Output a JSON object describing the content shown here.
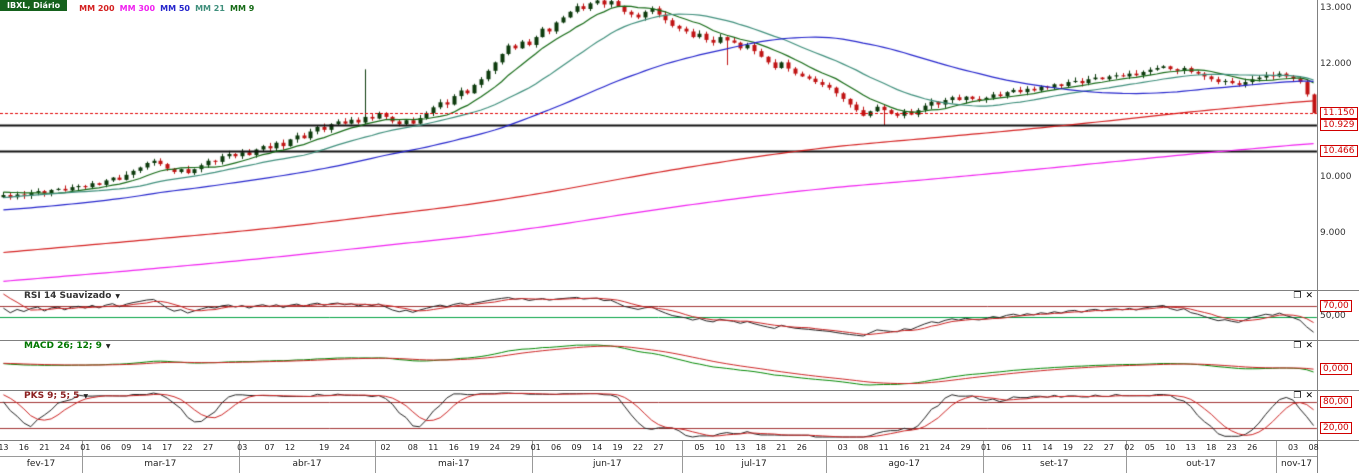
{
  "legend": {
    "symbol": "IBXL, Diário",
    "items": [
      {
        "label": "MM 200",
        "color": "#d42020"
      },
      {
        "label": "MM 300",
        "color": "#f020f0"
      },
      {
        "label": "MM 50",
        "color": "#2424cc"
      },
      {
        "label": "MM 21",
        "color": "#3f8f7c"
      },
      {
        "label": "MM 9",
        "color": "#156a15"
      }
    ]
  },
  "icons": {
    "dropdown": "▼",
    "maximize": "❐",
    "close": "✕"
  },
  "panels": {
    "rsi": {
      "title": "RSI 14 Suavizado",
      "title_color": "#333333",
      "levels": [
        {
          "value": 70,
          "text": "70,00",
          "boxed": true,
          "line_color": "#a03030"
        },
        {
          "value": 50,
          "text": "50,00",
          "boxed": false,
          "line_color": "#00a040"
        }
      ]
    },
    "macd": {
      "title": "MACD 26; 12; 9",
      "title_color": "#007700",
      "levels": [
        {
          "value": 0,
          "text": "0,000",
          "boxed": true,
          "line_color": null
        }
      ]
    },
    "pks": {
      "title": "PKS 9; 5; 5",
      "title_color": "#8b2020",
      "levels": [
        {
          "value": 80,
          "text": "80,00",
          "boxed": true,
          "line_color": "#a03030"
        },
        {
          "value": 20,
          "text": "20,00",
          "boxed": true,
          "line_color": "#a03030"
        }
      ]
    }
  },
  "chart_data": {
    "type": "candlestick",
    "start_date": "2017-02-13",
    "end_date": "2017-11-08",
    "frequency": "daily-weekdays",
    "ylim": [
      8000,
      13160
    ],
    "closes": [
      9690,
      9650,
      9700,
      9680,
      9730,
      9760,
      9720,
      9780,
      9800,
      9770,
      9830,
      9850,
      9830,
      9900,
      9870,
      9950,
      10000,
      9960,
      10050,
      10120,
      10180,
      10260,
      10300,
      10240,
      10160,
      10100,
      10150,
      10080,
      10150,
      10220,
      10300,
      10280,
      10380,
      10420,
      10380,
      10450,
      10400,
      10500,
      10560,
      10520,
      10620,
      10560,
      10680,
      10750,
      10700,
      10820,
      10900,
      10850,
      10950,
      11000,
      10960,
      11030,
      10980,
      11080,
      11050,
      11150,
      11080,
      11000,
      10950,
      11020,
      10960,
      11060,
      11150,
      11250,
      11340,
      11300,
      11450,
      11550,
      11500,
      11650,
      11750,
      11900,
      12050,
      12200,
      12350,
      12300,
      12420,
      12360,
      12500,
      12650,
      12600,
      12760,
      12850,
      12950,
      13050,
      13000,
      13100,
      13150,
      13080,
      13140,
      13050,
      12950,
      12900,
      12850,
      12950,
      13010,
      12900,
      12800,
      12700,
      12650,
      12600,
      12500,
      12560,
      12450,
      12400,
      12500,
      12440,
      12400,
      12300,
      12360,
      12250,
      12150,
      12050,
      11950,
      12050,
      11940,
      11850,
      11800,
      11760,
      11700,
      11650,
      11600,
      11500,
      11400,
      11300,
      11200,
      11100,
      11180,
      11260,
      11200,
      11140,
      11100,
      11180,
      11120,
      11200,
      11280,
      11350,
      11300,
      11380,
      11430,
      11380,
      11440,
      11400,
      11380,
      11420,
      11480,
      11450,
      11520,
      11560,
      11520,
      11580,
      11550,
      11620,
      11600,
      11660,
      11630,
      11700,
      11720,
      11680,
      11750,
      11780,
      11750,
      11800,
      11820,
      11800,
      11850,
      11820,
      11880,
      11920,
      11950,
      11980,
      11930,
      11900,
      11950,
      11880,
      11850,
      11800,
      11750,
      11700,
      11720,
      11680,
      11650,
      11700,
      11750,
      11780,
      11820,
      11800,
      11850,
      11800,
      11760,
      11700,
      11480,
      11150
    ],
    "high_spikes": {
      "53": 820
    },
    "low_spikes": {
      "106": 420,
      "129": 260
    },
    "candles": {
      "up_color": "#0d3b0d",
      "down_color": "#c01414"
    },
    "moving_averages": [
      {
        "period": 9,
        "color": "#156a15"
      },
      {
        "period": 21,
        "color": "#3f8f7c"
      },
      {
        "period": 50,
        "color": "#2424cc"
      },
      {
        "period": 200,
        "color": "#d42020"
      },
      {
        "period": 300,
        "color": "#f020f0"
      }
    ],
    "price_lines": [
      {
        "value": 11150,
        "text": "11.150",
        "type": "last",
        "color": "#e00000"
      },
      {
        "value": 10929,
        "text": "10.929",
        "type": "support",
        "color": "#111111"
      },
      {
        "value": 10466,
        "text": "10.466",
        "type": "support",
        "color": "#111111"
      }
    ],
    "y_ticks": [
      {
        "value": 13000,
        "text": "13.000"
      },
      {
        "value": 12000,
        "text": "12.000"
      },
      {
        "value": 10000,
        "text": "10.000"
      },
      {
        "value": 9000,
        "text": "9.000"
      }
    ],
    "indicators": {
      "rsi": {
        "period": 14,
        "smooth": 5,
        "line_color": "#222222",
        "smooth_color": "#cc2222"
      },
      "macd": {
        "slow": 26,
        "fast": 12,
        "signal": 9,
        "macd_color": "#008800",
        "signal_color": "#cc2222"
      },
      "pks": {
        "k": 9,
        "smooth": 5,
        "d": 5,
        "k_color": "#222222",
        "d_color": "#cc2222"
      }
    },
    "x_axis": {
      "months": [
        {
          "label": "fev-17",
          "month": 2,
          "days": [
            "13",
            "16",
            "21",
            "24"
          ]
        },
        {
          "label": "mar-17",
          "month": 3,
          "days": [
            "01",
            "06",
            "09",
            "14",
            "17",
            "22",
            "27"
          ]
        },
        {
          "label": "abr-17",
          "month": 4,
          "days": [
            "03",
            "07",
            "12",
            "19",
            "24"
          ]
        },
        {
          "label": "mai-17",
          "month": 5,
          "days": [
            "02",
            "08",
            "11",
            "16",
            "19",
            "24",
            "29"
          ]
        },
        {
          "label": "jun-17",
          "month": 6,
          "days": [
            "01",
            "06",
            "09",
            "14",
            "19",
            "22",
            "27"
          ]
        },
        {
          "label": "jul-17",
          "month": 7,
          "days": [
            "05",
            "10",
            "13",
            "18",
            "21",
            "26"
          ]
        },
        {
          "label": "ago-17",
          "month": 8,
          "days": [
            "03",
            "08",
            "11",
            "16",
            "21",
            "24",
            "29"
          ]
        },
        {
          "label": "set-17",
          "month": 9,
          "days": [
            "01",
            "06",
            "11",
            "14",
            "19",
            "22",
            "27"
          ]
        },
        {
          "label": "out-17",
          "month": 10,
          "days": [
            "02",
            "05",
            "10",
            "13",
            "18",
            "23",
            "26"
          ]
        },
        {
          "label": "nov-17",
          "month": 11,
          "days": [
            "03",
            "08"
          ]
        }
      ]
    }
  }
}
